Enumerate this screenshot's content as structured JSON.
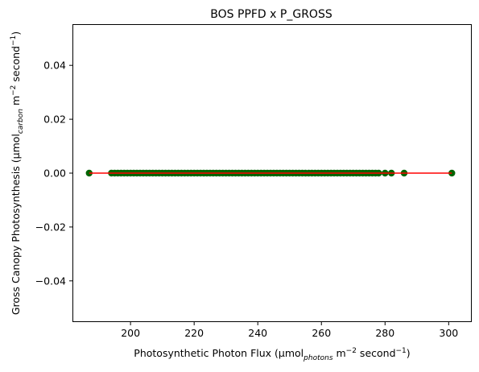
{
  "chart_data": {
    "type": "scatter",
    "title": "BOS PPFD x P_GROSS",
    "xlabel": {
      "prefix": "Photosynthetic Photon Flux (µmol",
      "sub": "photons",
      "mid": " m",
      "sup1": "−2",
      "mid2": " second",
      "sup2": "−1",
      "suffix": ")"
    },
    "ylabel": {
      "prefix": "Gross Canopy Photosynthesis (µmol",
      "sub": "carbon",
      "mid": " m",
      "sup1": "−2",
      "mid2": " second",
      "sup2": "−1",
      "suffix": ")"
    },
    "xlim": [
      182,
      307
    ],
    "ylim": [
      -0.055,
      0.055
    ],
    "xticks": [
      200,
      220,
      240,
      260,
      280,
      300
    ],
    "xtick_labels": [
      "200",
      "220",
      "240",
      "260",
      "280",
      "300"
    ],
    "yticks": [
      0.04,
      0.02,
      0.0,
      -0.02,
      -0.04
    ],
    "ytick_labels": [
      "0.04",
      "0.02",
      "0.00",
      "−0.02",
      "−0.04"
    ],
    "grid": false,
    "point_color": "#006400",
    "line_color": "#ff0000",
    "points": {
      "x": [
        187,
        194,
        195,
        196,
        197,
        198,
        199,
        200,
        201,
        202,
        203,
        204,
        205,
        206,
        207,
        208,
        209,
        210,
        211,
        212,
        213,
        214,
        215,
        216,
        217,
        218,
        219,
        220,
        221,
        222,
        223,
        224,
        225,
        226,
        227,
        228,
        229,
        230,
        231,
        232,
        233,
        234,
        235,
        236,
        237,
        238,
        239,
        240,
        241,
        242,
        243,
        244,
        245,
        246,
        247,
        248,
        249,
        250,
        251,
        252,
        253,
        254,
        255,
        256,
        257,
        258,
        259,
        260,
        261,
        262,
        263,
        264,
        265,
        266,
        267,
        268,
        269,
        270,
        271,
        272,
        273,
        274,
        275,
        276,
        277,
        278,
        280,
        282,
        286,
        301
      ],
      "y": [
        0,
        0,
        0,
        0,
        0,
        0,
        0,
        0,
        0,
        0,
        0,
        0,
        0,
        0,
        0,
        0,
        0,
        0,
        0,
        0,
        0,
        0,
        0,
        0,
        0,
        0,
        0,
        0,
        0,
        0,
        0,
        0,
        0,
        0,
        0,
        0,
        0,
        0,
        0,
        0,
        0,
        0,
        0,
        0,
        0,
        0,
        0,
        0,
        0,
        0,
        0,
        0,
        0,
        0,
        0,
        0,
        0,
        0,
        0,
        0,
        0,
        0,
        0,
        0,
        0,
        0,
        0,
        0,
        0,
        0,
        0,
        0,
        0,
        0,
        0,
        0,
        0,
        0,
        0,
        0,
        0,
        0,
        0,
        0,
        0,
        0,
        0,
        0,
        0,
        0
      ]
    },
    "fit_line": {
      "x": [
        187,
        301
      ],
      "y": [
        0.0,
        0.0
      ]
    }
  }
}
